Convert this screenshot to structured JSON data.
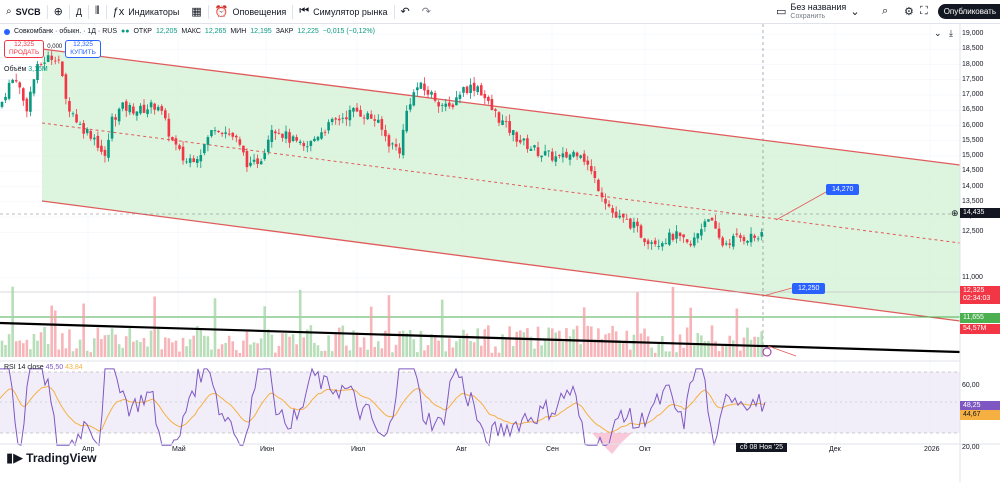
{
  "toolbar": {
    "symbol": "SVCB",
    "interval": "Д",
    "indicators": "Индикаторы",
    "alerts": "Оповещения",
    "replay": "Симулятор рынка",
    "layout_name": "Без названия",
    "layout_status": "Сохранить",
    "publish": "Опубликовать"
  },
  "legend": {
    "title": "Совкомбанк · обыкн. · 1Д · RUS",
    "open_lbl": "ОТКР",
    "open": "12,205",
    "high_lbl": "МАКС",
    "high": "12,265",
    "low_lbl": "МИН",
    "low": "12,195",
    "close_lbl": "ЗАКР",
    "close": "12,225",
    "change": "−0,015 (−0,12%)",
    "sell_price": "12,325",
    "sell_label": "ПРОДАТЬ",
    "spread": "0,000",
    "buy_price": "12,325",
    "buy_label": "КУПИТЬ",
    "volume_label": "Объём",
    "volume_value": "3,16M"
  },
  "rsi": {
    "label": "RSI 14 close",
    "value1": "45,50",
    "value2": "43,84"
  },
  "callouts": {
    "upper": "14,270",
    "lower": "12,250"
  },
  "price_axis": [
    "19,000",
    "18,500",
    "18,000",
    "17,500",
    "17,000",
    "16,500",
    "16,000",
    "15,500",
    "15,000",
    "14,500",
    "14,000",
    "13,500",
    "13,000",
    "12,500",
    "11,000"
  ],
  "axis_tags": {
    "crosshair": "14,435",
    "last_price": "12,325",
    "countdown": "02:34:03",
    "green_level": "11,655",
    "volume": "54,57M",
    "rsi_a": "48,25",
    "rsi_b": "44,67"
  },
  "rsi_axis": [
    "60,00",
    "20,00"
  ],
  "time_axis": [
    "Апр",
    "Май",
    "Июн",
    "Июл",
    "Авг",
    "Сен",
    "Окт",
    "Дек",
    "2026"
  ],
  "date_tag": "сб 08 Ноя '25",
  "brand": "TradingView",
  "colors": {
    "up": "#089981",
    "down": "#f23645",
    "channel_fill": "#d7f2d8",
    "accent": "#2962ff",
    "rsi_fill": "#ede7f6"
  }
}
